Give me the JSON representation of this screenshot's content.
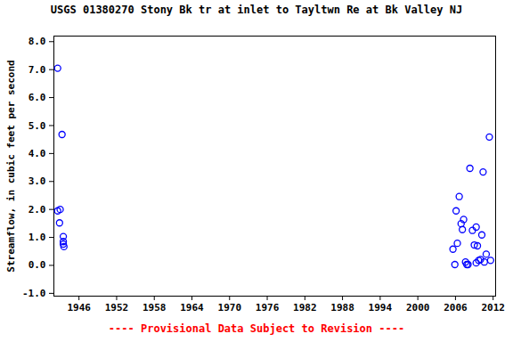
{
  "chart_data": {
    "type": "scatter",
    "title": "USGS 01380270 Stony Bk tr at inlet to Tayltwn Re at Bk Valley NJ",
    "caption": "---- Provisional Data Subject to Revision ----",
    "caption_color": "#ff0000",
    "y_label": "Streamflow, in cubic feet per second",
    "x": [
      1942.6,
      1943.3,
      1942.6,
      1943.0,
      1942.9,
      1943.5,
      1943.5,
      1943.5,
      1943.6,
      2005.6,
      2005.9,
      2006.1,
      2006.6,
      2006.3,
      2006.9,
      2007.1,
      2007.3,
      2007.6,
      2007.8,
      2008.0,
      2008.3,
      2008.7,
      2009.0,
      2009.3,
      2009.5,
      2009.3,
      2009.7,
      2010.0,
      2010.2,
      2010.4,
      2010.6,
      2010.9,
      2011.4,
      2011.6
    ],
    "values": [
      7.05,
      4.68,
      1.95,
      2.0,
      1.52,
      1.03,
      0.85,
      0.76,
      0.67,
      0.58,
      0.03,
      1.95,
      2.46,
      0.79,
      1.49,
      1.28,
      1.64,
      0.12,
      0.03,
      0.03,
      3.47,
      1.25,
      0.73,
      1.37,
      0.7,
      0.09,
      0.18,
      0.21,
      1.09,
      3.34,
      0.12,
      0.4,
      4.59,
      0.18
    ],
    "color": "#0000ff",
    "marker": "open_circle",
    "xlim": [
      1942,
      2012.4
    ],
    "xticks": [
      1946,
      1952,
      1958,
      1964,
      1970,
      1976,
      1982,
      1988,
      1994,
      2000,
      2006,
      2012
    ],
    "ylim": [
      -1.1,
      8.2
    ],
    "yticks": [
      {
        "value": -1,
        "label": "-1.0"
      },
      {
        "value": 0,
        "label": "0.0"
      },
      {
        "value": 1,
        "label": "1.0"
      },
      {
        "value": 2,
        "label": "2.0"
      },
      {
        "value": 3,
        "label": "3.0"
      },
      {
        "value": 4,
        "label": "4.0"
      },
      {
        "value": 5,
        "label": "5.0"
      },
      {
        "value": 6,
        "label": "6.0"
      },
      {
        "value": 7,
        "label": "7.0"
      },
      {
        "value": 8,
        "label": "8.0"
      }
    ],
    "grid": false
  }
}
